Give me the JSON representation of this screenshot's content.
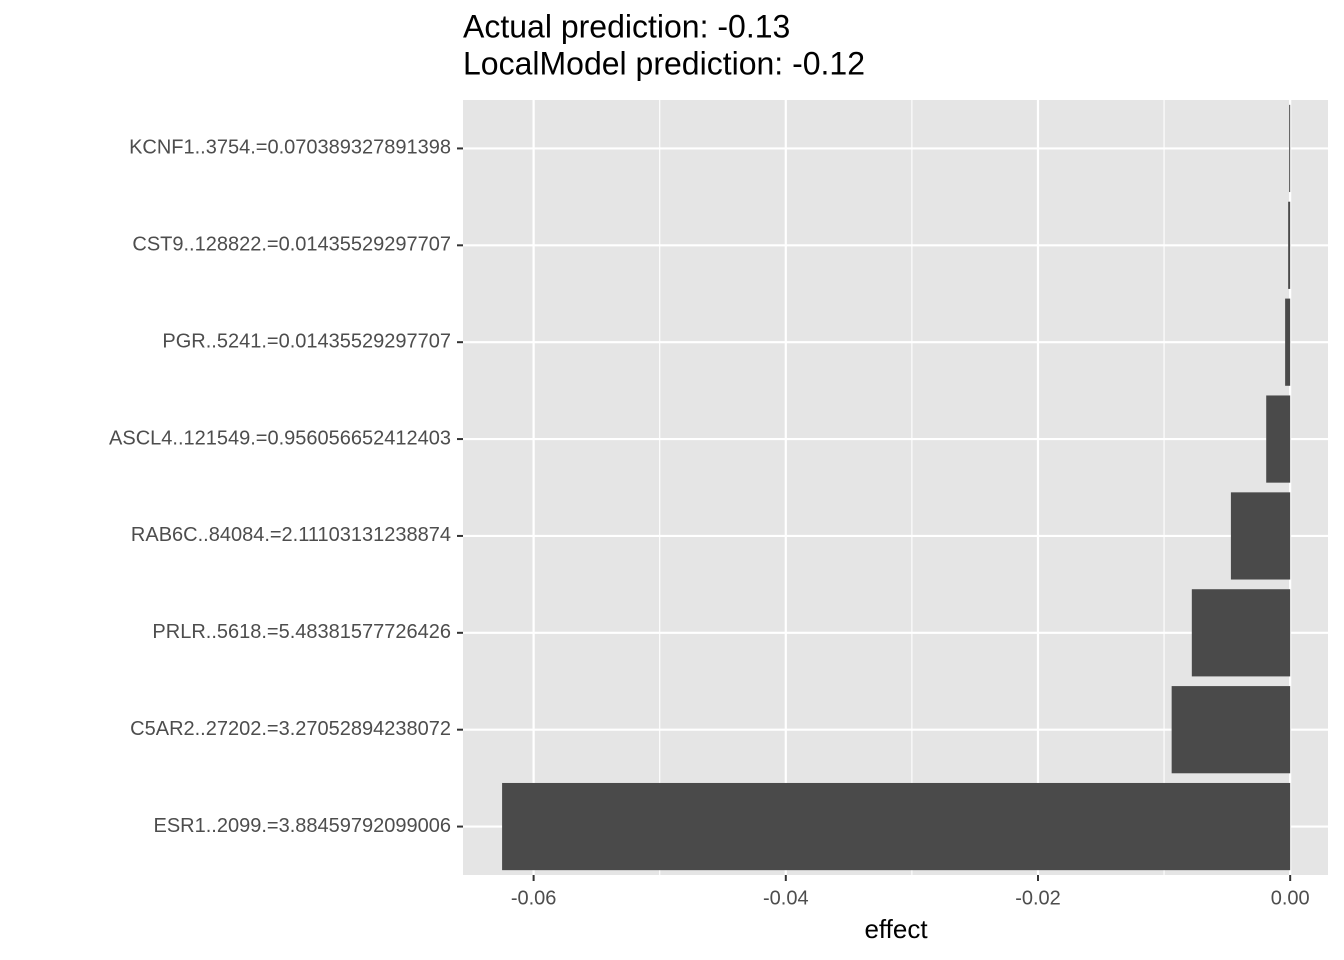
{
  "chart_data": {
    "type": "barh",
    "title": "Actual prediction: -0.13",
    "subtitle": "LocalModel prediction: -0.12",
    "xlabel": "effect",
    "categories": [
      "KCNF1..3754.=0.070389327891398",
      "CST9..128822.=0.01435529297707",
      "PGR..5241.=0.01435529297707",
      "ASCL4..121549.=0.956056652412403",
      "RAB6C..84084.=2.11103131238874",
      "PRLR..5618.=5.48381577726426",
      "C5AR2..27202.=3.27052894238072",
      "ESR1..2099.=3.88459792099006"
    ],
    "values": [
      -8e-05,
      -0.00016,
      -0.0004,
      -0.0019,
      -0.0047,
      -0.0078,
      -0.0094,
      -0.0625
    ],
    "color": "#4a4a4a",
    "xlim": [
      -0.0656,
      0.003
    ],
    "xticks": [
      -0.06,
      -0.04,
      -0.02,
      {
        "value": 0,
        "label": "0.00"
      }
    ],
    "xminor": [
      -0.05,
      -0.03,
      -0.01
    ],
    "grid": true
  }
}
